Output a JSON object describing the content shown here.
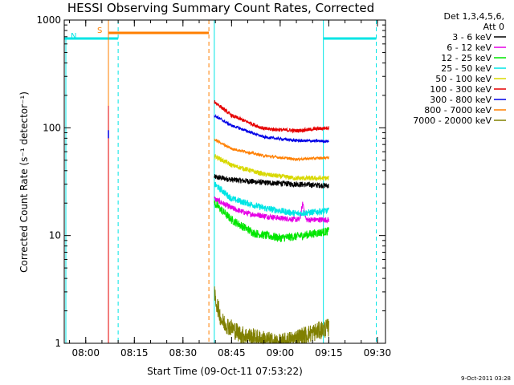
{
  "chart_data": {
    "type": "line",
    "title": "HESSI Observing Summary Count Rates, Corrected",
    "xlabel": "Start Time (09-Oct-11 07:53:22)",
    "ylabel": "Corrected Count Rate (s⁻¹ detector⁻¹)",
    "y_scale": "log",
    "ylim": [
      1,
      1000
    ],
    "xlim": [
      "07:53:22",
      "09:32:30"
    ],
    "x_tick_labels": [
      "08:00",
      "08:15",
      "08:30",
      "08:45",
      "09:00",
      "09:15",
      "09:30"
    ],
    "y_tick_labels": [
      "1",
      "10",
      "100",
      "1000"
    ],
    "legend_header": [
      "Det 1,3,4,5,6,",
      "Att 0"
    ],
    "legend_position": "right",
    "annotations": {
      "S": {
        "label": "S",
        "start": "08:07:00",
        "end": "08:38:00",
        "color": "#ff7f00"
      },
      "N1": {
        "label": "N",
        "start": "07:53:22",
        "end": "08:10:00",
        "color": "#00e5e5"
      },
      "N2": {
        "label": "",
        "start": "09:13:20",
        "end": "09:29:40",
        "color": "#00e5e5"
      },
      "data_gap_lines": [
        "08:07:00",
        "08:10:00",
        "08:38:00",
        "08:39:40",
        "09:13:20",
        "09:29:40"
      ]
    },
    "series": [
      {
        "name": "3 - 6 keV",
        "color": "#000000",
        "points": [
          [
            "08:39:40",
            35
          ],
          [
            "08:45:00",
            33
          ],
          [
            "08:55:00",
            31
          ],
          [
            "09:05:00",
            30
          ],
          [
            "09:15:00",
            29
          ]
        ],
        "noise": 0.06
      },
      {
        "name": "6 - 12 keV",
        "color": "#e600e6",
        "points": [
          [
            "08:39:40",
            22
          ],
          [
            "08:45:00",
            18
          ],
          [
            "08:50:00",
            16
          ],
          [
            "09:00:00",
            14.5
          ],
          [
            "09:06:00",
            14
          ],
          [
            "09:07:00",
            20
          ],
          [
            "09:08:00",
            14
          ],
          [
            "09:15:00",
            14
          ]
        ],
        "noise": 0.06
      },
      {
        "name": "12 - 25 keV",
        "color": "#00e600",
        "points": [
          [
            "08:39:40",
            20
          ],
          [
            "08:45:00",
            14
          ],
          [
            "08:52:00",
            10.5
          ],
          [
            "09:00:00",
            9.5
          ],
          [
            "09:05:00",
            9.8
          ],
          [
            "09:15:00",
            11
          ]
        ],
        "noise": 0.09
      },
      {
        "name": "25 - 50 keV",
        "color": "#00e5e5",
        "points": [
          [
            "08:39:40",
            30
          ],
          [
            "08:45:00",
            22
          ],
          [
            "08:55:00",
            18
          ],
          [
            "09:05:00",
            16
          ],
          [
            "09:15:00",
            17
          ]
        ],
        "noise": 0.07
      },
      {
        "name": "50 - 100 keV",
        "color": "#d8d800",
        "points": [
          [
            "08:39:40",
            55
          ],
          [
            "08:45:00",
            45
          ],
          [
            "08:55:00",
            37
          ],
          [
            "09:05:00",
            34
          ],
          [
            "09:15:00",
            34
          ]
        ],
        "noise": 0.05
      },
      {
        "name": "100 - 300 keV",
        "color": "#e60000",
        "points": [
          [
            "08:39:40",
            175
          ],
          [
            "08:45:00",
            130
          ],
          [
            "08:55:00",
            98
          ],
          [
            "09:05:00",
            94
          ],
          [
            "09:15:00",
            100
          ]
        ],
        "noise": 0.04
      },
      {
        "name": "300 - 800 keV",
        "color": "#0000e6",
        "points": [
          [
            "08:39:40",
            130
          ],
          [
            "08:45:00",
            105
          ],
          [
            "08:55:00",
            82
          ],
          [
            "09:05:00",
            76
          ],
          [
            "09:15:00",
            75
          ]
        ],
        "noise": 0.03
      },
      {
        "name": "800 - 7000 keV",
        "color": "#ff7f00",
        "points": [
          [
            "08:39:40",
            78
          ],
          [
            "08:45:00",
            64
          ],
          [
            "08:55:00",
            55
          ],
          [
            "09:05:00",
            51
          ],
          [
            "09:15:00",
            53
          ]
        ],
        "noise": 0.03
      },
      {
        "name": "7000 - 20000 keV",
        "color": "#808000",
        "points": [
          [
            "08:39:40",
            2.8
          ],
          [
            "08:42:00",
            1.6
          ],
          [
            "08:48:00",
            1.2
          ],
          [
            "09:00:00",
            1
          ],
          [
            "09:15:00",
            1.4
          ]
        ],
        "noise": 0.2
      }
    ]
  },
  "footer": {
    "date_stamp": "9-Oct-2011 03:28"
  }
}
